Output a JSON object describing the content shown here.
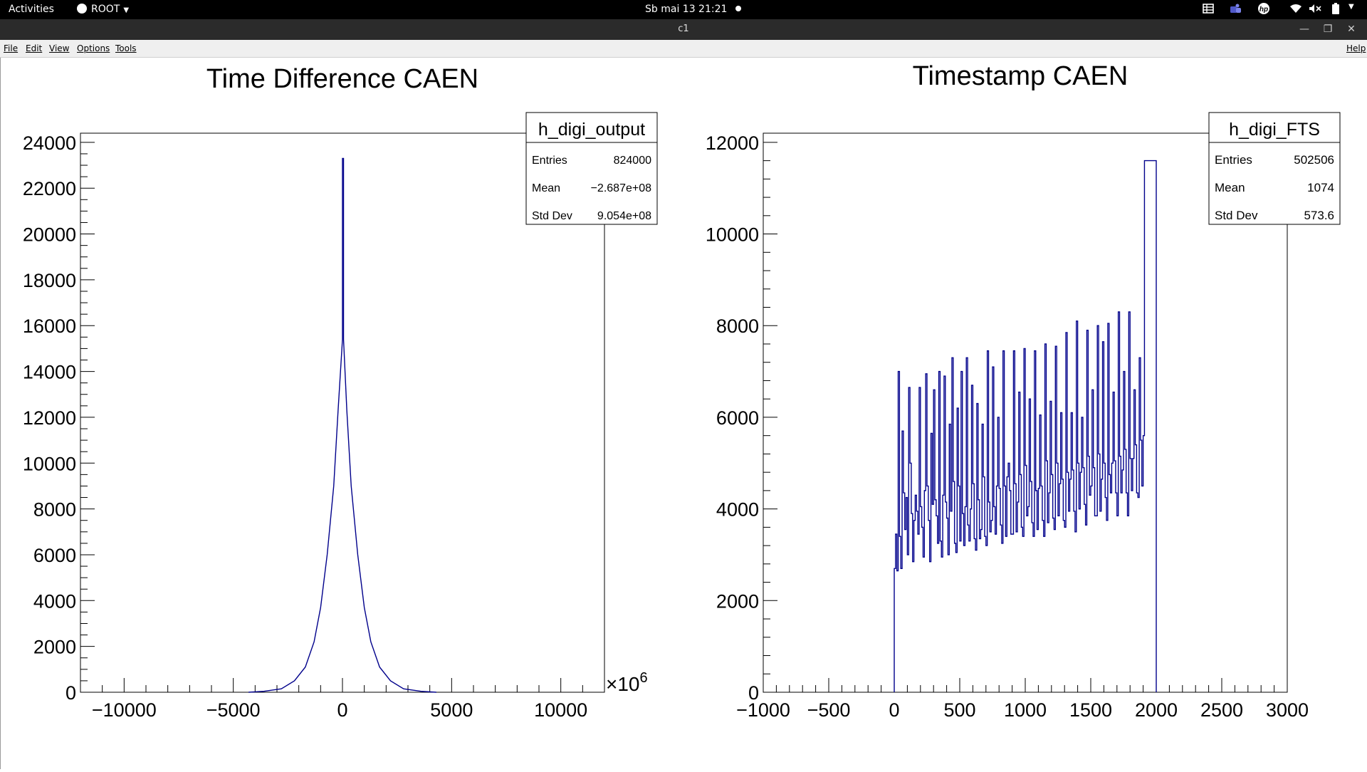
{
  "topbar": {
    "activities": "Activities",
    "app_menu": "ROOT",
    "clock": "Sb mai 13  21:21"
  },
  "window": {
    "title": "c1"
  },
  "menubar": {
    "items": [
      "File",
      "Edit",
      "View",
      "Options",
      "Tools"
    ],
    "help": "Help"
  },
  "chart_data": [
    {
      "type": "histogram",
      "title": "Time Difference CAEN",
      "stats": {
        "name": "h_digi_output",
        "rows": [
          {
            "label": "Entries",
            "value": "824000"
          },
          {
            "label": "Mean",
            "value": "−2.687e+08"
          },
          {
            "label": "Std Dev",
            "value": "9.054e+08"
          }
        ]
      },
      "x_exponent_label": "×10",
      "x_exponent_power": "6",
      "xlim": [
        -12000,
        12000
      ],
      "ylim": [
        0,
        24400
      ],
      "xticks": [
        -10000,
        -5000,
        0,
        5000,
        10000
      ],
      "xtick_labels": [
        "−10000",
        "−5000",
        "0",
        "5000",
        "10000"
      ],
      "yticks": [
        0,
        2000,
        4000,
        6000,
        8000,
        10000,
        12000,
        14000,
        16000,
        18000,
        20000,
        22000,
        24000
      ],
      "ytick_labels": [
        "0",
        "2000",
        "4000",
        "6000",
        "8000",
        "10000",
        "12000",
        "14000",
        "16000",
        "18000",
        "20000",
        "22000",
        "24000"
      ],
      "line_color": "#00008b",
      "peak": {
        "x": 0,
        "y": 23300
      },
      "shoulder": {
        "x": 0,
        "y": 15400
      },
      "profile": [
        {
          "dx": 0,
          "y": 15400
        },
        {
          "dx": 200,
          "y": 12300
        },
        {
          "dx": 400,
          "y": 9000
        },
        {
          "dx": 700,
          "y": 6000
        },
        {
          "dx": 1000,
          "y": 3700
        },
        {
          "dx": 1300,
          "y": 2200
        },
        {
          "dx": 1700,
          "y": 1100
        },
        {
          "dx": 2200,
          "y": 500
        },
        {
          "dx": 2800,
          "y": 150
        },
        {
          "dx": 3600,
          "y": 40
        },
        {
          "dx": 4300,
          "y": 0
        }
      ]
    },
    {
      "type": "histogram",
      "title": "Timestamp CAEN",
      "stats": {
        "name": "h_digi_FTS",
        "rows": [
          {
            "label": "Entries",
            "value": "502506"
          },
          {
            "label": "Mean",
            "value": "1074"
          },
          {
            "label": "Std Dev",
            "value": "573.6"
          }
        ]
      },
      "xlim": [
        -1000,
        3000
      ],
      "ylim": [
        0,
        12200
      ],
      "xticks": [
        -1000,
        -500,
        0,
        500,
        1000,
        1500,
        2000,
        2500,
        3000
      ],
      "xtick_labels": [
        "−1000",
        "−500",
        "0",
        "500",
        "1000",
        "1500",
        "2000",
        "2500",
        "3000"
      ],
      "yticks": [
        0,
        2000,
        4000,
        6000,
        8000,
        10000,
        12000
      ],
      "ytick_labels": [
        "0",
        "2000",
        "4000",
        "6000",
        "8000",
        "10000",
        "12000"
      ],
      "line_color": "#00008b",
      "bin_width": 10,
      "bins": [
        {
          "x": 0,
          "y": 2700
        },
        {
          "x": 10,
          "y": 3450
        },
        {
          "x": 20,
          "y": 2650
        },
        {
          "x": 30,
          "y": 7000
        },
        {
          "x": 40,
          "y": 3400
        },
        {
          "x": 50,
          "y": 2700
        },
        {
          "x": 60,
          "y": 5700
        },
        {
          "x": 70,
          "y": 4350
        },
        {
          "x": 80,
          "y": 3550
        },
        {
          "x": 90,
          "y": 4250
        },
        {
          "x": 100,
          "y": 3000
        },
        {
          "x": 110,
          "y": 6650
        },
        {
          "x": 120,
          "y": 5000
        },
        {
          "x": 130,
          "y": 3900
        },
        {
          "x": 140,
          "y": 2850
        },
        {
          "x": 150,
          "y": 3750
        },
        {
          "x": 160,
          "y": 4300
        },
        {
          "x": 170,
          "y": 3950
        },
        {
          "x": 180,
          "y": 3450
        },
        {
          "x": 190,
          "y": 6650
        },
        {
          "x": 200,
          "y": 4050
        },
        {
          "x": 210,
          "y": 3600
        },
        {
          "x": 220,
          "y": 2950
        },
        {
          "x": 230,
          "y": 4400
        },
        {
          "x": 240,
          "y": 6950
        },
        {
          "x": 250,
          "y": 4500
        },
        {
          "x": 260,
          "y": 3750
        },
        {
          "x": 270,
          "y": 2850
        },
        {
          "x": 280,
          "y": 5650
        },
        {
          "x": 290,
          "y": 4100
        },
        {
          "x": 300,
          "y": 6600
        },
        {
          "x": 310,
          "y": 4200
        },
        {
          "x": 320,
          "y": 3850
        },
        {
          "x": 330,
          "y": 3250
        },
        {
          "x": 340,
          "y": 7000
        },
        {
          "x": 350,
          "y": 3300
        },
        {
          "x": 360,
          "y": 2950
        },
        {
          "x": 370,
          "y": 4300
        },
        {
          "x": 380,
          "y": 6900
        },
        {
          "x": 390,
          "y": 4150
        },
        {
          "x": 400,
          "y": 3800
        },
        {
          "x": 410,
          "y": 3000
        },
        {
          "x": 420,
          "y": 5850
        },
        {
          "x": 430,
          "y": 3950
        },
        {
          "x": 440,
          "y": 7300
        },
        {
          "x": 450,
          "y": 4600
        },
        {
          "x": 460,
          "y": 3250
        },
        {
          "x": 470,
          "y": 3050
        },
        {
          "x": 480,
          "y": 6200
        },
        {
          "x": 490,
          "y": 4500
        },
        {
          "x": 500,
          "y": 3300
        },
        {
          "x": 510,
          "y": 7000
        },
        {
          "x": 520,
          "y": 3900
        },
        {
          "x": 530,
          "y": 3200
        },
        {
          "x": 540,
          "y": 4050
        },
        {
          "x": 550,
          "y": 7300
        },
        {
          "x": 560,
          "y": 3650
        },
        {
          "x": 570,
          "y": 3300
        },
        {
          "x": 580,
          "y": 4000
        },
        {
          "x": 590,
          "y": 6700
        },
        {
          "x": 600,
          "y": 4550
        },
        {
          "x": 610,
          "y": 3350
        },
        {
          "x": 620,
          "y": 3100
        },
        {
          "x": 630,
          "y": 6300
        },
        {
          "x": 640,
          "y": 4200
        },
        {
          "x": 650,
          "y": 3350
        },
        {
          "x": 660,
          "y": 3550
        },
        {
          "x": 670,
          "y": 5850
        },
        {
          "x": 680,
          "y": 4700
        },
        {
          "x": 690,
          "y": 3400
        },
        {
          "x": 700,
          "y": 3200
        },
        {
          "x": 710,
          "y": 7450
        },
        {
          "x": 720,
          "y": 4150
        },
        {
          "x": 730,
          "y": 3500
        },
        {
          "x": 740,
          "y": 3750
        },
        {
          "x": 750,
          "y": 7100
        },
        {
          "x": 760,
          "y": 4050
        },
        {
          "x": 770,
          "y": 3450
        },
        {
          "x": 780,
          "y": 4500
        },
        {
          "x": 790,
          "y": 6000
        },
        {
          "x": 800,
          "y": 4450
        },
        {
          "x": 810,
          "y": 3650
        },
        {
          "x": 820,
          "y": 3250
        },
        {
          "x": 830,
          "y": 7450
        },
        {
          "x": 840,
          "y": 4500
        },
        {
          "x": 850,
          "y": 3400
        },
        {
          "x": 860,
          "y": 4700
        },
        {
          "x": 870,
          "y": 5000
        },
        {
          "x": 880,
          "y": 4400
        },
        {
          "x": 890,
          "y": 3450
        },
        {
          "x": 900,
          "y": 3450
        },
        {
          "x": 910,
          "y": 7450
        },
        {
          "x": 920,
          "y": 4550
        },
        {
          "x": 930,
          "y": 3500
        },
        {
          "x": 940,
          "y": 4150
        },
        {
          "x": 950,
          "y": 6550
        },
        {
          "x": 960,
          "y": 4750
        },
        {
          "x": 970,
          "y": 3600
        },
        {
          "x": 980,
          "y": 3400
        },
        {
          "x": 990,
          "y": 7500
        },
        {
          "x": 1000,
          "y": 4950
        },
        {
          "x": 1010,
          "y": 3850
        },
        {
          "x": 1020,
          "y": 4050
        },
        {
          "x": 1030,
          "y": 6400
        },
        {
          "x": 1040,
          "y": 4600
        },
        {
          "x": 1050,
          "y": 3700
        },
        {
          "x": 1060,
          "y": 3400
        },
        {
          "x": 1070,
          "y": 7450
        },
        {
          "x": 1080,
          "y": 4400
        },
        {
          "x": 1090,
          "y": 3550
        },
        {
          "x": 1100,
          "y": 4450
        },
        {
          "x": 1110,
          "y": 6050
        },
        {
          "x": 1120,
          "y": 4500
        },
        {
          "x": 1130,
          "y": 3750
        },
        {
          "x": 1140,
          "y": 3400
        },
        {
          "x": 1150,
          "y": 7600
        },
        {
          "x": 1160,
          "y": 5050
        },
        {
          "x": 1170,
          "y": 3700
        },
        {
          "x": 1180,
          "y": 4350
        },
        {
          "x": 1190,
          "y": 6350
        },
        {
          "x": 1200,
          "y": 4750
        },
        {
          "x": 1210,
          "y": 3800
        },
        {
          "x": 1220,
          "y": 3550
        },
        {
          "x": 1230,
          "y": 7550
        },
        {
          "x": 1240,
          "y": 5000
        },
        {
          "x": 1250,
          "y": 3850
        },
        {
          "x": 1260,
          "y": 4550
        },
        {
          "x": 1270,
          "y": 6100
        },
        {
          "x": 1280,
          "y": 4650
        },
        {
          "x": 1290,
          "y": 3750
        },
        {
          "x": 1300,
          "y": 3600
        },
        {
          "x": 1310,
          "y": 7850
        },
        {
          "x": 1320,
          "y": 4800
        },
        {
          "x": 1330,
          "y": 3950
        },
        {
          "x": 1340,
          "y": 4650
        },
        {
          "x": 1350,
          "y": 6100
        },
        {
          "x": 1360,
          "y": 4850
        },
        {
          "x": 1370,
          "y": 3950
        },
        {
          "x": 1380,
          "y": 3500
        },
        {
          "x": 1390,
          "y": 8100
        },
        {
          "x": 1400,
          "y": 5000
        },
        {
          "x": 1410,
          "y": 4000
        },
        {
          "x": 1420,
          "y": 4800
        },
        {
          "x": 1430,
          "y": 6000
        },
        {
          "x": 1440,
          "y": 4900
        },
        {
          "x": 1450,
          "y": 4100
        },
        {
          "x": 1460,
          "y": 3650
        },
        {
          "x": 1470,
          "y": 7900
        },
        {
          "x": 1480,
          "y": 5150
        },
        {
          "x": 1490,
          "y": 4300
        },
        {
          "x": 1500,
          "y": 4500
        },
        {
          "x": 1510,
          "y": 6600
        },
        {
          "x": 1520,
          "y": 4900
        },
        {
          "x": 1530,
          "y": 3850
        },
        {
          "x": 1540,
          "y": 3850
        },
        {
          "x": 1550,
          "y": 8000
        },
        {
          "x": 1560,
          "y": 5200
        },
        {
          "x": 1570,
          "y": 3950
        },
        {
          "x": 1580,
          "y": 4650
        },
        {
          "x": 1590,
          "y": 7650
        },
        {
          "x": 1600,
          "y": 5000
        },
        {
          "x": 1610,
          "y": 4250
        },
        {
          "x": 1620,
          "y": 3750
        },
        {
          "x": 1630,
          "y": 8050
        },
        {
          "x": 1640,
          "y": 4750
        },
        {
          "x": 1650,
          "y": 4350
        },
        {
          "x": 1660,
          "y": 5000
        },
        {
          "x": 1670,
          "y": 6550
        },
        {
          "x": 1680,
          "y": 5050
        },
        {
          "x": 1690,
          "y": 4350
        },
        {
          "x": 1700,
          "y": 3850
        },
        {
          "x": 1710,
          "y": 8300
        },
        {
          "x": 1720,
          "y": 5150
        },
        {
          "x": 1730,
          "y": 4350
        },
        {
          "x": 1740,
          "y": 4850
        },
        {
          "x": 1750,
          "y": 7000
        },
        {
          "x": 1760,
          "y": 5300
        },
        {
          "x": 1770,
          "y": 4350
        },
        {
          "x": 1780,
          "y": 3850
        },
        {
          "x": 1790,
          "y": 8300
        },
        {
          "x": 1800,
          "y": 5100
        },
        {
          "x": 1810,
          "y": 4400
        },
        {
          "x": 1820,
          "y": 5100
        },
        {
          "x": 1830,
          "y": 6600
        },
        {
          "x": 1840,
          "y": 5400
        },
        {
          "x": 1850,
          "y": 4350
        },
        {
          "x": 1860,
          "y": 4250
        },
        {
          "x": 1870,
          "y": 7300
        },
        {
          "x": 1880,
          "y": 5500
        },
        {
          "x": 1890,
          "y": 4500
        },
        {
          "x": 1900,
          "y": 5600
        },
        {
          "x": 1910,
          "y": 11600
        },
        {
          "x": 1920,
          "y": 11600
        },
        {
          "x": 1930,
          "y": 11600
        },
        {
          "x": 1940,
          "y": 11600
        },
        {
          "x": 1950,
          "y": 11600
        },
        {
          "x": 1960,
          "y": 11600
        },
        {
          "x": 1970,
          "y": 11600
        },
        {
          "x": 1980,
          "y": 11600
        },
        {
          "x": 1990,
          "y": 11600
        }
      ]
    }
  ]
}
